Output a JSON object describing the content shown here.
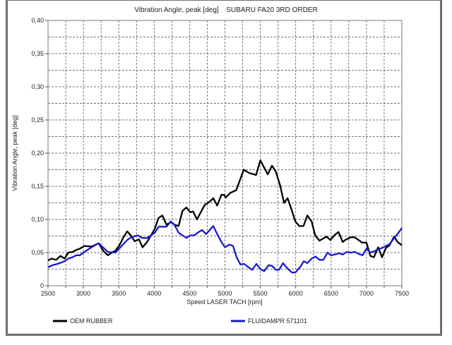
{
  "chart_data": {
    "type": "line",
    "title": "Vibration Angle, peak [deg]",
    "subtitle": "SUBARU FA20 3RD ORDER",
    "xlabel": "Speed LASER TACH [rpm]",
    "ylabel": "Vibration Angle, peak [deg]",
    "xlim": [
      2500,
      7500
    ],
    "ylim": [
      0,
      0.4
    ],
    "xticks": [
      2500,
      3000,
      3500,
      4000,
      4500,
      5000,
      5500,
      6000,
      6500,
      7000,
      7500
    ],
    "xtick_labels": [
      "2500",
      "3000",
      "3500",
      "4000",
      "4500",
      "5000",
      "5500",
      "6000",
      "6500",
      "7000",
      "7500"
    ],
    "yticks": [
      0,
      0.05,
      0.1,
      0.15,
      0.2,
      0.25,
      0.3,
      0.35,
      0.4
    ],
    "ytick_labels": [
      "0",
      "0,05",
      "0,10",
      "0,15",
      "0,20",
      "0,25",
      "0,30",
      "0,35",
      "0,40"
    ],
    "grid": true,
    "legend_position": "bottom",
    "series": [
      {
        "name": "OEM RUBBER",
        "color": "#000000",
        "x": [
          2500,
          2550,
          2615,
          2675,
          2735,
          2785,
          2845,
          2900,
          2950,
          3015,
          3115,
          3215,
          3285,
          3345,
          3400,
          3455,
          3515,
          3565,
          3620,
          3675,
          3725,
          3785,
          3835,
          3900,
          3955,
          4010,
          4060,
          4115,
          4175,
          4235,
          4285,
          4345,
          4400,
          4455,
          4510,
          4550,
          4605,
          4655,
          4715,
          4775,
          4835,
          4890,
          4950,
          4990,
          5010,
          5075,
          5160,
          5265,
          5340,
          5440,
          5500,
          5605,
          5665,
          5720,
          5780,
          5835,
          5885,
          5940,
          5995,
          6050,
          6110,
          6165,
          6225,
          6275,
          6335,
          6435,
          6490,
          6555,
          6605,
          6665,
          6700,
          6775,
          6835,
          6940,
          7000,
          7055,
          7105,
          7165,
          7220,
          7275,
          7325,
          7390,
          7440,
          7500
        ],
        "y": [
          0.038,
          0.041,
          0.039,
          0.045,
          0.041,
          0.05,
          0.051,
          0.054,
          0.056,
          0.06,
          0.059,
          0.064,
          0.052,
          0.046,
          0.05,
          0.053,
          0.062,
          0.073,
          0.082,
          0.075,
          0.067,
          0.07,
          0.058,
          0.066,
          0.076,
          0.086,
          0.102,
          0.106,
          0.092,
          0.096,
          0.092,
          0.09,
          0.113,
          0.118,
          0.111,
          0.112,
          0.1,
          0.11,
          0.122,
          0.126,
          0.132,
          0.121,
          0.137,
          0.137,
          0.133,
          0.14,
          0.144,
          0.175,
          0.17,
          0.167,
          0.189,
          0.168,
          0.181,
          0.172,
          0.151,
          0.125,
          0.132,
          0.115,
          0.097,
          0.09,
          0.09,
          0.106,
          0.097,
          0.076,
          0.068,
          0.074,
          0.069,
          0.077,
          0.081,
          0.066,
          0.069,
          0.073,
          0.073,
          0.065,
          0.065,
          0.045,
          0.043,
          0.058,
          0.043,
          0.057,
          0.061,
          0.074,
          0.066,
          0.061
        ]
      },
      {
        "name": "FLUIDAMPR 571101",
        "color": "#1a1acc",
        "x": [
          2500,
          2565,
          2635,
          2735,
          2785,
          2845,
          2900,
          2950,
          3015,
          3115,
          3215,
          3285,
          3345,
          3450,
          3515,
          3620,
          3675,
          3765,
          3835,
          3900,
          4010,
          4065,
          4175,
          4235,
          4285,
          4345,
          4400,
          4455,
          4510,
          4565,
          4615,
          4675,
          4735,
          4835,
          4890,
          4950,
          5000,
          5060,
          5115,
          5165,
          5220,
          5270,
          5330,
          5385,
          5445,
          5500,
          5555,
          5615,
          5665,
          5720,
          5765,
          5820,
          5885,
          5945,
          5995,
          6060,
          6115,
          6165,
          6225,
          6280,
          6335,
          6390,
          6450,
          6500,
          6555,
          6615,
          6665,
          6720,
          6775,
          6835,
          6890,
          6945,
          7000,
          7055,
          7110,
          7165,
          7220,
          7275,
          7330,
          7390,
          7440,
          7500
        ],
        "y": [
          0.028,
          0.031,
          0.033,
          0.037,
          0.041,
          0.043,
          0.046,
          0.046,
          0.051,
          0.058,
          0.064,
          0.057,
          0.051,
          0.05,
          0.057,
          0.069,
          0.073,
          0.076,
          0.072,
          0.072,
          0.08,
          0.089,
          0.089,
          0.097,
          0.092,
          0.08,
          0.076,
          0.072,
          0.076,
          0.076,
          0.08,
          0.084,
          0.078,
          0.09,
          0.078,
          0.066,
          0.058,
          0.062,
          0.06,
          0.043,
          0.032,
          0.033,
          0.028,
          0.024,
          0.033,
          0.025,
          0.022,
          0.031,
          0.03,
          0.024,
          0.024,
          0.034,
          0.026,
          0.02,
          0.02,
          0.028,
          0.037,
          0.034,
          0.041,
          0.044,
          0.039,
          0.039,
          0.05,
          0.046,
          0.047,
          0.049,
          0.047,
          0.051,
          0.05,
          0.051,
          0.048,
          0.046,
          0.056,
          0.05,
          0.052,
          0.055,
          0.057,
          0.06,
          0.063,
          0.072,
          0.078,
          0.087
        ]
      }
    ]
  }
}
